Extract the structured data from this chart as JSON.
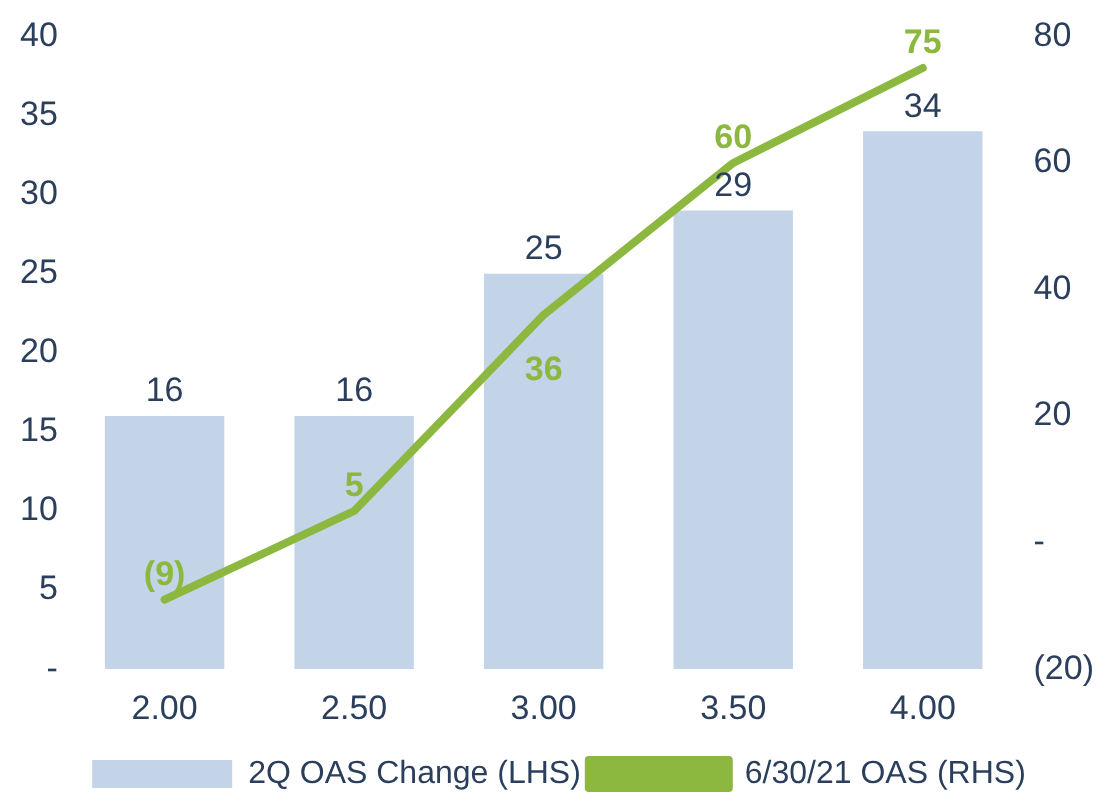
{
  "chart_data": {
    "type": "bar",
    "categories": [
      "2.00",
      "2.50",
      "3.00",
      "3.50",
      "4.00"
    ],
    "series": [
      {
        "name": "2Q OAS Change (LHS)",
        "color": "#c3d3e8",
        "values": [
          16,
          16,
          25,
          29,
          34
        ],
        "value_labels": [
          "16",
          "16",
          "25",
          "29",
          "34"
        ]
      },
      {
        "name": "6/30/21 OAS (RHS)",
        "type": "line",
        "axis": "y2",
        "color": "#8cb83f",
        "values": [
          -9,
          5,
          36,
          60,
          75
        ],
        "value_labels": [
          "(9)",
          "5",
          "36",
          "60",
          "75"
        ]
      }
    ],
    "ylim": [
      0,
      40
    ],
    "yticks": [
      {
        "value": 0,
        "label": "-"
      },
      5,
      10,
      15,
      20,
      25,
      30,
      35,
      40
    ],
    "y2lim": [
      -20,
      80
    ],
    "y2ticks": [
      {
        "value": -20,
        "label": "(20)"
      },
      {
        "value": 0,
        "label": "-"
      },
      20,
      40,
      60,
      80
    ],
    "grid": false,
    "legend": "bottom",
    "marker": "none",
    "line_style": "solid"
  }
}
